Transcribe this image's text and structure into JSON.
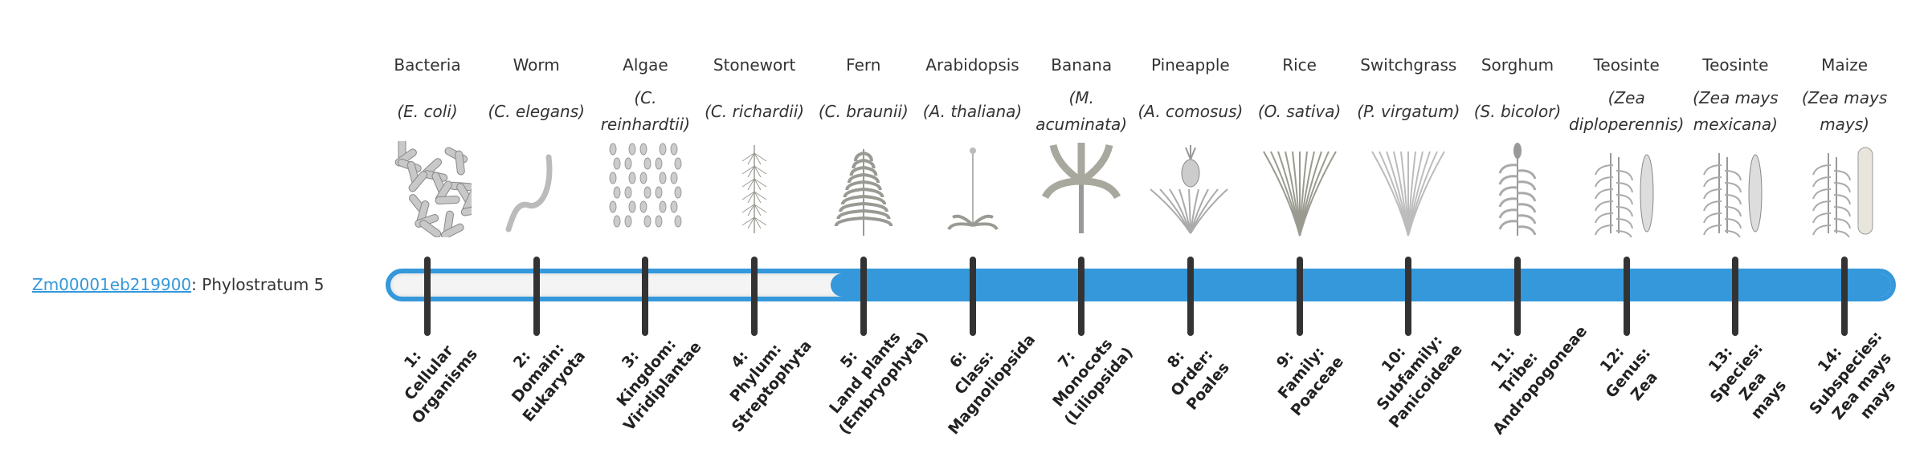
{
  "gene": {
    "id": "Zm00001eb219900",
    "suffix": ": Phylostratum 5"
  },
  "progress": {
    "current_phylostratum": 5,
    "total_phylostrata": 14
  },
  "colors": {
    "accent": "#3498db",
    "tick": "#333333",
    "track": "#f4f4f4"
  },
  "columns": [
    {
      "common": "Bacteria",
      "species": "(E. coli)",
      "icon": "bacteria-icon",
      "label_lines": [
        "1:",
        "Cellular",
        "Organisms"
      ]
    },
    {
      "common": "Worm",
      "species": "(C. elegans)",
      "icon": "worm-icon",
      "label_lines": [
        "2:",
        "Domain:",
        "Eukaryota"
      ]
    },
    {
      "common": "Algae",
      "species": "(C. reinhardtii)",
      "icon": "algae-icon",
      "label_lines": [
        "3:",
        "Kingdom:",
        "Viridiplantae"
      ]
    },
    {
      "common": "Stonewort",
      "species": "(C. richardii)",
      "icon": "stonewort-icon",
      "label_lines": [
        "4:",
        "Phylum:",
        "Streptophyta"
      ]
    },
    {
      "common": "Fern",
      "species": "(C. braunii)",
      "icon": "fern-icon",
      "label_lines": [
        "5:",
        "Land plants",
        "(Embryophyta)"
      ]
    },
    {
      "common": "Arabidopsis",
      "species": "(A. thaliana)",
      "icon": "arabidopsis-icon",
      "label_lines": [
        "6:",
        "Class:",
        "Magnoliopsida"
      ]
    },
    {
      "common": "Banana",
      "species": "(M. acuminata)",
      "icon": "banana-icon",
      "label_lines": [
        "7:",
        "Monocots",
        "(Liliopsida)"
      ]
    },
    {
      "common": "Pineapple",
      "species": "(A. comosus)",
      "icon": "pineapple-icon",
      "label_lines": [
        "8:",
        "Order:",
        "Poales"
      ]
    },
    {
      "common": "Rice",
      "species": "(O. sativa)",
      "icon": "rice-icon",
      "label_lines": [
        "9:",
        "Family:",
        "Poaceae"
      ]
    },
    {
      "common": "Switchgrass",
      "species": "(P. virgatum)",
      "icon": "switchgrass-icon",
      "label_lines": [
        "10:",
        "Subfamily:",
        "Panicoideae"
      ]
    },
    {
      "common": "Sorghum",
      "species": "(S. bicolor)",
      "icon": "sorghum-icon",
      "label_lines": [
        "11:",
        "Tribe:",
        "Andropogoneae"
      ]
    },
    {
      "common": "Teosinte",
      "species": "(Zea diploperennis)",
      "icon": "teosinte-icon",
      "label_lines": [
        "12:",
        "Genus:",
        "Zea"
      ]
    },
    {
      "common": "Teosinte",
      "species": "(Zea mays mexicana)",
      "icon": "teosinte-mexicana-icon",
      "label_lines": [
        "13:",
        "Species:",
        "Zea",
        "mays"
      ]
    },
    {
      "common": "Maize",
      "species": "(Zea mays mays)",
      "icon": "maize-icon",
      "label_lines": [
        "14:",
        "Subspecies:",
        "Zea mays",
        "mays"
      ]
    }
  ]
}
